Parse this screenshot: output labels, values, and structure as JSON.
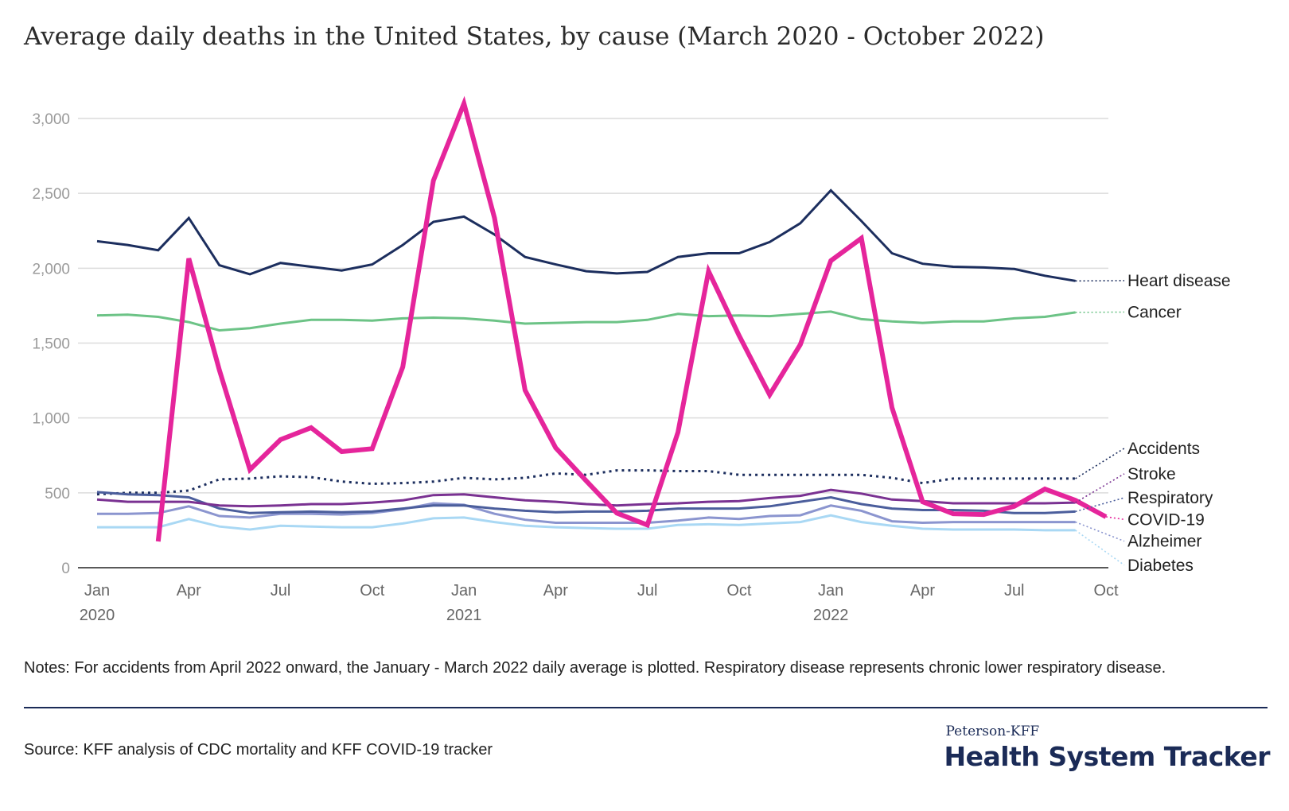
{
  "title": "Average daily deaths in the United States, by cause (March 2020 - October 2022)",
  "notes": "Notes: For accidents from April 2022 onward, the January - March 2022 daily average is plotted. Respiratory disease represents chronic lower respiratory disease.",
  "source": "Source: KFF analysis of CDC mortality and KFF COVID-19 tracker",
  "brand": {
    "small": "Peterson-KFF",
    "big": "Health System Tracker"
  },
  "chart_data": {
    "type": "line",
    "x_ticks": [
      {
        "month": 0,
        "label": "Jan",
        "year": "2020"
      },
      {
        "month": 3,
        "label": "Apr",
        "year": ""
      },
      {
        "month": 6,
        "label": "Jul",
        "year": ""
      },
      {
        "month": 9,
        "label": "Oct",
        "year": ""
      },
      {
        "month": 12,
        "label": "Jan",
        "year": "2021"
      },
      {
        "month": 15,
        "label": "Apr",
        "year": ""
      },
      {
        "month": 18,
        "label": "Jul",
        "year": ""
      },
      {
        "month": 21,
        "label": "Oct",
        "year": ""
      },
      {
        "month": 24,
        "label": "Jan",
        "year": "2022"
      },
      {
        "month": 27,
        "label": "Apr",
        "year": ""
      },
      {
        "month": 30,
        "label": "Jul",
        "year": ""
      },
      {
        "month": 33,
        "label": "Oct",
        "year": ""
      }
    ],
    "y_ticks": [
      0,
      500,
      1000,
      1500,
      2000,
      2500,
      3000
    ],
    "y_tick_labels": [
      "0",
      "500",
      "1,000",
      "1,500",
      "2,000",
      "2,500",
      "3,000"
    ],
    "ylim": [
      0,
      3200
    ],
    "x_start": "2020-01",
    "x_end": "2022-10",
    "grid": true,
    "legend": "direct labels at right end of lines",
    "series": [
      {
        "name": "Heart disease",
        "color": "#1c2e5e",
        "width": 3,
        "dashed": false,
        "x": [
          "2020-01",
          "2020-02",
          "2020-03",
          "2020-04",
          "2020-05",
          "2020-06",
          "2020-07",
          "2020-08",
          "2020-09",
          "2020-10",
          "2020-11",
          "2020-12",
          "2021-01",
          "2021-02",
          "2021-03",
          "2021-04",
          "2021-05",
          "2021-06",
          "2021-07",
          "2021-08",
          "2021-09",
          "2021-10",
          "2021-11",
          "2021-12",
          "2022-01",
          "2022-02",
          "2022-03",
          "2022-04",
          "2022-05",
          "2022-06",
          "2022-07",
          "2022-08",
          "2022-09"
        ],
        "values": [
          2180,
          2155,
          2120,
          2335,
          2020,
          1960,
          2035,
          2010,
          1985,
          2025,
          2155,
          2310,
          2345,
          2225,
          2075,
          2025,
          1980,
          1965,
          1975,
          2075,
          2100,
          2100,
          2175,
          2300,
          2520,
          2315,
          2100,
          2030,
          2010,
          2005,
          1995,
          1950,
          1915
        ]
      },
      {
        "name": "Cancer",
        "color": "#6cc386",
        "width": 3,
        "dashed": false,
        "x": [
          "2020-01",
          "2020-02",
          "2020-03",
          "2020-04",
          "2020-05",
          "2020-06",
          "2020-07",
          "2020-08",
          "2020-09",
          "2020-10",
          "2020-11",
          "2020-12",
          "2021-01",
          "2021-02",
          "2021-03",
          "2021-04",
          "2021-05",
          "2021-06",
          "2021-07",
          "2021-08",
          "2021-09",
          "2021-10",
          "2021-11",
          "2021-12",
          "2022-01",
          "2022-02",
          "2022-03",
          "2022-04",
          "2022-05",
          "2022-06",
          "2022-07",
          "2022-08",
          "2022-09"
        ],
        "values": [
          1685,
          1690,
          1675,
          1640,
          1585,
          1600,
          1630,
          1655,
          1655,
          1650,
          1665,
          1670,
          1665,
          1650,
          1630,
          1635,
          1640,
          1640,
          1655,
          1695,
          1680,
          1685,
          1680,
          1695,
          1710,
          1660,
          1645,
          1635,
          1645,
          1645,
          1665,
          1675,
          1705
        ]
      },
      {
        "name": "Accidents",
        "color": "#1c2e5e",
        "width": 3,
        "dashed": true,
        "x": [
          "2020-01",
          "2020-02",
          "2020-03",
          "2020-04",
          "2020-05",
          "2020-06",
          "2020-07",
          "2020-08",
          "2020-09",
          "2020-10",
          "2020-11",
          "2020-12",
          "2021-01",
          "2021-02",
          "2021-03",
          "2021-04",
          "2021-05",
          "2021-06",
          "2021-07",
          "2021-08",
          "2021-09",
          "2021-10",
          "2021-11",
          "2021-12",
          "2022-01",
          "2022-02",
          "2022-03",
          "2022-04",
          "2022-05",
          "2022-06",
          "2022-07",
          "2022-08",
          "2022-09"
        ],
        "values": [
          490,
          500,
          500,
          515,
          590,
          595,
          610,
          605,
          575,
          560,
          565,
          575,
          600,
          590,
          600,
          630,
          620,
          650,
          650,
          645,
          645,
          620,
          620,
          620,
          620,
          620,
          600,
          565,
          595,
          595,
          595,
          595,
          595
        ]
      },
      {
        "name": "Stroke",
        "color": "#7a3292",
        "width": 3,
        "dashed": false,
        "x": [
          "2020-01",
          "2020-02",
          "2020-03",
          "2020-04",
          "2020-05",
          "2020-06",
          "2020-07",
          "2020-08",
          "2020-09",
          "2020-10",
          "2020-11",
          "2020-12",
          "2021-01",
          "2021-02",
          "2021-03",
          "2021-04",
          "2021-05",
          "2021-06",
          "2021-07",
          "2021-08",
          "2021-09",
          "2021-10",
          "2021-11",
          "2021-12",
          "2022-01",
          "2022-02",
          "2022-03",
          "2022-04",
          "2022-05",
          "2022-06",
          "2022-07",
          "2022-08",
          "2022-09"
        ],
        "values": [
          455,
          440,
          440,
          440,
          415,
          410,
          415,
          425,
          425,
          435,
          450,
          485,
          490,
          470,
          450,
          440,
          425,
          415,
          425,
          430,
          440,
          445,
          465,
          480,
          520,
          495,
          455,
          445,
          430,
          430,
          430,
          430,
          435
        ]
      },
      {
        "name": "Respiratory",
        "color": "#4b5e9c",
        "width": 3,
        "dashed": false,
        "x": [
          "2020-01",
          "2020-02",
          "2020-03",
          "2020-04",
          "2020-05",
          "2020-06",
          "2020-07",
          "2020-08",
          "2020-09",
          "2020-10",
          "2020-11",
          "2020-12",
          "2021-01",
          "2021-02",
          "2021-03",
          "2021-04",
          "2021-05",
          "2021-06",
          "2021-07",
          "2021-08",
          "2021-09",
          "2021-10",
          "2021-11",
          "2021-12",
          "2022-01",
          "2022-02",
          "2022-03",
          "2022-04",
          "2022-05",
          "2022-06",
          "2022-07",
          "2022-08",
          "2022-09"
        ],
        "values": [
          505,
          490,
          485,
          470,
          395,
          365,
          370,
          375,
          370,
          375,
          395,
          415,
          415,
          395,
          380,
          370,
          375,
          375,
          380,
          395,
          395,
          395,
          410,
          440,
          470,
          425,
          395,
          385,
          385,
          380,
          365,
          365,
          375
        ]
      },
      {
        "name": "Alzheimer",
        "color": "#8b95cf",
        "width": 3,
        "dashed": false,
        "x": [
          "2020-01",
          "2020-02",
          "2020-03",
          "2020-04",
          "2020-05",
          "2020-06",
          "2020-07",
          "2020-08",
          "2020-09",
          "2020-10",
          "2020-11",
          "2020-12",
          "2021-01",
          "2021-02",
          "2021-03",
          "2021-04",
          "2021-05",
          "2021-06",
          "2021-07",
          "2021-08",
          "2021-09",
          "2021-10",
          "2021-11",
          "2021-12",
          "2022-01",
          "2022-02",
          "2022-03",
          "2022-04",
          "2022-05",
          "2022-06",
          "2022-07",
          "2022-08",
          "2022-09"
        ],
        "values": [
          360,
          360,
          365,
          410,
          345,
          335,
          360,
          360,
          355,
          365,
          390,
          430,
          420,
          360,
          320,
          300,
          300,
          300,
          300,
          315,
          335,
          325,
          345,
          350,
          415,
          380,
          310,
          300,
          305,
          305,
          305,
          305,
          305
        ]
      },
      {
        "name": "Diabetes",
        "color": "#a9d8f4",
        "width": 3,
        "dashed": false,
        "x": [
          "2020-01",
          "2020-02",
          "2020-03",
          "2020-04",
          "2020-05",
          "2020-06",
          "2020-07",
          "2020-08",
          "2020-09",
          "2020-10",
          "2020-11",
          "2020-12",
          "2021-01",
          "2021-02",
          "2021-03",
          "2021-04",
          "2021-05",
          "2021-06",
          "2021-07",
          "2021-08",
          "2021-09",
          "2021-10",
          "2021-11",
          "2021-12",
          "2022-01",
          "2022-02",
          "2022-03",
          "2022-04",
          "2022-05",
          "2022-06",
          "2022-07",
          "2022-08",
          "2022-09"
        ],
        "values": [
          270,
          270,
          270,
          325,
          275,
          255,
          280,
          275,
          270,
          270,
          295,
          330,
          335,
          305,
          280,
          270,
          265,
          260,
          260,
          285,
          290,
          285,
          295,
          305,
          350,
          305,
          280,
          260,
          255,
          255,
          255,
          250,
          250
        ]
      },
      {
        "name": "COVID-19",
        "color": "#e5259b",
        "width": 6,
        "dashed": false,
        "x": [
          "2020-03",
          "2020-04",
          "2020-05",
          "2020-06",
          "2020-07",
          "2020-08",
          "2020-09",
          "2020-10",
          "2020-11",
          "2020-12",
          "2021-01",
          "2021-02",
          "2021-03",
          "2021-04",
          "2021-05",
          "2021-06",
          "2021-07",
          "2021-08",
          "2021-09",
          "2021-10",
          "2021-11",
          "2021-12",
          "2022-01",
          "2022-02",
          "2022-03",
          "2022-04",
          "2022-05",
          "2022-06",
          "2022-07",
          "2022-08",
          "2022-09",
          "2022-10"
        ],
        "values": [
          175,
          2065,
          1320,
          655,
          855,
          935,
          775,
          795,
          1340,
          2585,
          3100,
          2335,
          1185,
          800,
          580,
          365,
          285,
          905,
          1980,
          1550,
          1155,
          1490,
          2050,
          2200,
          1070,
          440,
          360,
          355,
          410,
          525,
          450,
          340
        ]
      }
    ],
    "labels": [
      {
        "series": "Heart disease",
        "text": "Heart disease",
        "label_value": 1880
      },
      {
        "series": "Cancer",
        "text": "Cancer",
        "label_value": 1670
      },
      {
        "series": "Accidents",
        "text": "Accidents",
        "label_value": 760
      },
      {
        "series": "Stroke",
        "text": "Stroke",
        "label_value": 590
      },
      {
        "series": "Respiratory",
        "text": "Respiratory",
        "label_value": 430
      },
      {
        "series": "COVID-19",
        "text": "COVID-19",
        "label_value": 285
      },
      {
        "series": "Alzheimer",
        "text": "Alzheimer",
        "label_value": 140
      },
      {
        "series": "Diabetes",
        "text": "Diabetes",
        "label_value": -20
      }
    ]
  }
}
